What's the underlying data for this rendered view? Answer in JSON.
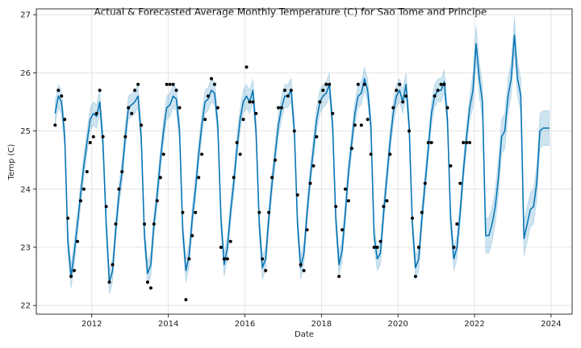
{
  "chart_data": {
    "type": "line",
    "title": "Actual & Forecasted Average Monthly Temperature (C) for Sao Tome and Principe",
    "xlabel": "Date",
    "ylabel": "Temp (C)",
    "xlim": [
      2010.55,
      2024.55
    ],
    "ylim": [
      21.85,
      27.1
    ],
    "x_ticks": [
      {
        "value": 2012,
        "label": "2012"
      },
      {
        "value": 2014,
        "label": "2014"
      },
      {
        "value": 2016,
        "label": "2016"
      },
      {
        "value": 2018,
        "label": "2018"
      },
      {
        "value": 2020,
        "label": "2020"
      },
      {
        "value": 2022,
        "label": "2022"
      },
      {
        "value": 2024,
        "label": "2024"
      }
    ],
    "y_ticks": [
      {
        "value": 22,
        "label": "22"
      },
      {
        "value": 23,
        "label": "23"
      },
      {
        "value": 24,
        "label": "24"
      },
      {
        "value": 25,
        "label": "25"
      },
      {
        "value": 26,
        "label": "26"
      },
      {
        "value": 27,
        "label": "27"
      }
    ],
    "grid": true,
    "colors": {
      "forecast_line": "#0072B2",
      "uncertainty_band": "#0072B2",
      "actual_points": "#000000",
      "grid": "#dddddd",
      "axes": "#000000"
    },
    "series": [
      {
        "kind": "points",
        "x": [
          2011.042,
          2011.125,
          2011.208,
          2011.292,
          2011.375,
          2011.458,
          2011.542,
          2011.625,
          2011.708,
          2011.792,
          2011.875,
          2011.958,
          2012.042,
          2012.125,
          2012.208,
          2012.292,
          2012.375,
          2012.458,
          2012.542,
          2012.625,
          2012.708,
          2012.792,
          2012.875,
          2012.958,
          2013.042,
          2013.125,
          2013.208,
          2013.292,
          2013.375,
          2013.458,
          2013.542,
          2013.625,
          2013.708,
          2013.792,
          2013.875,
          2013.958,
          2014.042,
          2014.125,
          2014.208,
          2014.292,
          2014.375,
          2014.458,
          2014.542,
          2014.625,
          2014.708,
          2014.792,
          2014.875,
          2014.958,
          2015.042,
          2015.125,
          2015.208,
          2015.292,
          2015.375,
          2015.458,
          2015.542,
          2015.625,
          2015.708,
          2015.792,
          2015.875,
          2015.958,
          2016.042,
          2016.125,
          2016.208,
          2016.292,
          2016.375,
          2016.458,
          2016.542,
          2016.625,
          2016.708,
          2016.792,
          2016.875,
          2016.958,
          2017.042,
          2017.125,
          2017.208,
          2017.292,
          2017.375,
          2017.458,
          2017.542,
          2017.625,
          2017.708,
          2017.792,
          2017.875,
          2017.958,
          2018.042,
          2018.125,
          2018.208,
          2018.292,
          2018.375,
          2018.458,
          2018.542,
          2018.625,
          2018.708,
          2018.792,
          2018.875,
          2018.958,
          2019.042,
          2019.125,
          2019.208,
          2019.292,
          2019.375,
          2019.458,
          2019.542,
          2019.625,
          2019.708,
          2019.792,
          2019.875,
          2019.958,
          2020.042,
          2020.125,
          2020.208,
          2020.292,
          2020.375,
          2020.458,
          2020.542,
          2020.625,
          2020.708,
          2020.792,
          2020.875,
          2020.958,
          2021.042,
          2021.125,
          2021.208,
          2021.292,
          2021.375,
          2021.458,
          2021.542,
          2021.625,
          2021.708,
          2021.792,
          2021.875
        ],
        "y": [
          25.1,
          25.7,
          25.6,
          25.2,
          23.5,
          22.5,
          22.6,
          23.1,
          23.8,
          24.0,
          24.3,
          24.8,
          24.9,
          25.3,
          25.7,
          24.9,
          23.7,
          22.4,
          22.7,
          23.4,
          24.0,
          24.3,
          24.9,
          25.4,
          25.3,
          25.7,
          25.8,
          25.1,
          23.4,
          22.4,
          22.3,
          23.4,
          23.8,
          24.2,
          24.6,
          25.8,
          25.8,
          25.8,
          25.7,
          25.4,
          23.6,
          22.1,
          22.8,
          23.2,
          23.6,
          24.2,
          24.6,
          25.2,
          25.6,
          25.9,
          25.8,
          25.4,
          23.0,
          22.8,
          22.8,
          23.1,
          24.2,
          24.8,
          24.6,
          25.2,
          26.1,
          25.5,
          25.5,
          25.3,
          23.6,
          22.8,
          22.6,
          23.6,
          24.2,
          24.5,
          25.4,
          25.4,
          25.7,
          25.6,
          25.7,
          25.0,
          23.9,
          22.7,
          22.6,
          23.3,
          24.1,
          24.4,
          24.9,
          25.5,
          25.7,
          25.8,
          25.8,
          25.3,
          23.7,
          22.5,
          23.3,
          24.0,
          23.8,
          24.7,
          25.1,
          25.8,
          25.1,
          25.8,
          25.2,
          24.6,
          23.0,
          23.0,
          23.1,
          23.7,
          23.8,
          24.6,
          25.4,
          25.7,
          25.8,
          25.5,
          25.6,
          25.0,
          23.5,
          22.5,
          23.0,
          23.6,
          24.1,
          24.8,
          24.8,
          25.6,
          25.7,
          25.8,
          25.8,
          25.4,
          24.4,
          23.0,
          23.4,
          24.1,
          24.8,
          24.8,
          24.8
        ]
      },
      {
        "kind": "forecast",
        "x": [
          2011.042,
          2011.125,
          2011.208,
          2011.292,
          2011.375,
          2011.458,
          2011.542,
          2011.625,
          2011.708,
          2011.792,
          2011.875,
          2011.958,
          2012.042,
          2012.125,
          2012.208,
          2012.292,
          2012.375,
          2012.458,
          2012.542,
          2012.625,
          2012.708,
          2012.792,
          2012.875,
          2012.958,
          2013.042,
          2013.125,
          2013.208,
          2013.292,
          2013.375,
          2013.458,
          2013.542,
          2013.625,
          2013.708,
          2013.792,
          2013.875,
          2013.958,
          2014.042,
          2014.125,
          2014.208,
          2014.292,
          2014.375,
          2014.458,
          2014.542,
          2014.625,
          2014.708,
          2014.792,
          2014.875,
          2014.958,
          2015.042,
          2015.125,
          2015.208,
          2015.292,
          2015.375,
          2015.458,
          2015.542,
          2015.625,
          2015.708,
          2015.792,
          2015.875,
          2015.958,
          2016.042,
          2016.125,
          2016.208,
          2016.292,
          2016.375,
          2016.458,
          2016.542,
          2016.625,
          2016.708,
          2016.792,
          2016.875,
          2016.958,
          2017.042,
          2017.125,
          2017.208,
          2017.292,
          2017.375,
          2017.458,
          2017.542,
          2017.625,
          2017.708,
          2017.792,
          2017.875,
          2017.958,
          2018.042,
          2018.125,
          2018.208,
          2018.292,
          2018.375,
          2018.458,
          2018.542,
          2018.625,
          2018.708,
          2018.792,
          2018.875,
          2018.958,
          2019.042,
          2019.125,
          2019.208,
          2019.292,
          2019.375,
          2019.458,
          2019.542,
          2019.625,
          2019.708,
          2019.792,
          2019.875,
          2019.958,
          2020.042,
          2020.125,
          2020.208,
          2020.292,
          2020.375,
          2020.458,
          2020.542,
          2020.625,
          2020.708,
          2020.792,
          2020.875,
          2020.958,
          2021.042,
          2021.125,
          2021.208,
          2021.292,
          2021.375,
          2021.458,
          2021.542,
          2021.625,
          2021.708,
          2021.792,
          2021.875,
          2021.958,
          2022.042,
          2022.125,
          2022.208,
          2022.292,
          2022.375,
          2022.458,
          2022.542,
          2022.625,
          2022.708,
          2022.792,
          2022.875,
          2022.958,
          2023.042,
          2023.125,
          2023.208,
          2023.292,
          2023.375,
          2023.458,
          2023.542,
          2023.625,
          2023.708,
          2023.792,
          2023.875,
          2023.958
        ],
        "y": [
          25.3,
          25.6,
          25.5,
          24.9,
          23.1,
          22.5,
          22.9,
          23.4,
          23.9,
          24.4,
          24.8,
          25.2,
          25.3,
          25.25,
          25.5,
          24.8,
          23.4,
          22.4,
          22.6,
          23.3,
          23.9,
          24.3,
          24.9,
          25.4,
          25.45,
          25.5,
          25.6,
          24.9,
          23.2,
          22.55,
          22.7,
          23.4,
          23.9,
          24.5,
          25.0,
          25.4,
          25.45,
          25.6,
          25.55,
          25.0,
          23.3,
          22.6,
          22.85,
          23.5,
          24.0,
          24.6,
          25.1,
          25.5,
          25.55,
          25.7,
          25.65,
          25.1,
          23.5,
          22.7,
          23.0,
          23.6,
          24.1,
          24.7,
          25.2,
          25.5,
          25.6,
          25.5,
          25.7,
          25.0,
          23.4,
          22.65,
          22.8,
          23.5,
          24.1,
          24.6,
          25.1,
          25.4,
          25.6,
          25.6,
          25.7,
          25.0,
          23.4,
          22.65,
          22.9,
          23.6,
          24.2,
          24.7,
          25.2,
          25.5,
          25.6,
          25.65,
          25.8,
          25.1,
          23.5,
          22.7,
          22.95,
          23.6,
          24.3,
          24.8,
          25.3,
          25.6,
          25.65,
          25.9,
          25.7,
          25.1,
          23.2,
          22.8,
          22.9,
          23.6,
          24.2,
          24.8,
          25.3,
          25.6,
          25.7,
          25.5,
          25.8,
          25.1,
          23.4,
          22.65,
          22.8,
          23.5,
          24.1,
          24.7,
          25.3,
          25.6,
          25.7,
          25.7,
          25.85,
          25.2,
          23.5,
          22.8,
          23.0,
          23.6,
          24.3,
          24.9,
          25.4,
          25.7,
          26.5,
          25.9,
          25.5,
          23.2,
          23.2,
          23.4,
          23.7,
          24.2,
          24.9,
          25.0,
          25.6,
          25.9,
          26.65,
          25.9,
          25.6,
          23.15,
          23.4,
          23.65,
          23.7,
          24.1,
          25.0,
          25.05,
          25.05,
          25.05
        ]
      }
    ]
  }
}
